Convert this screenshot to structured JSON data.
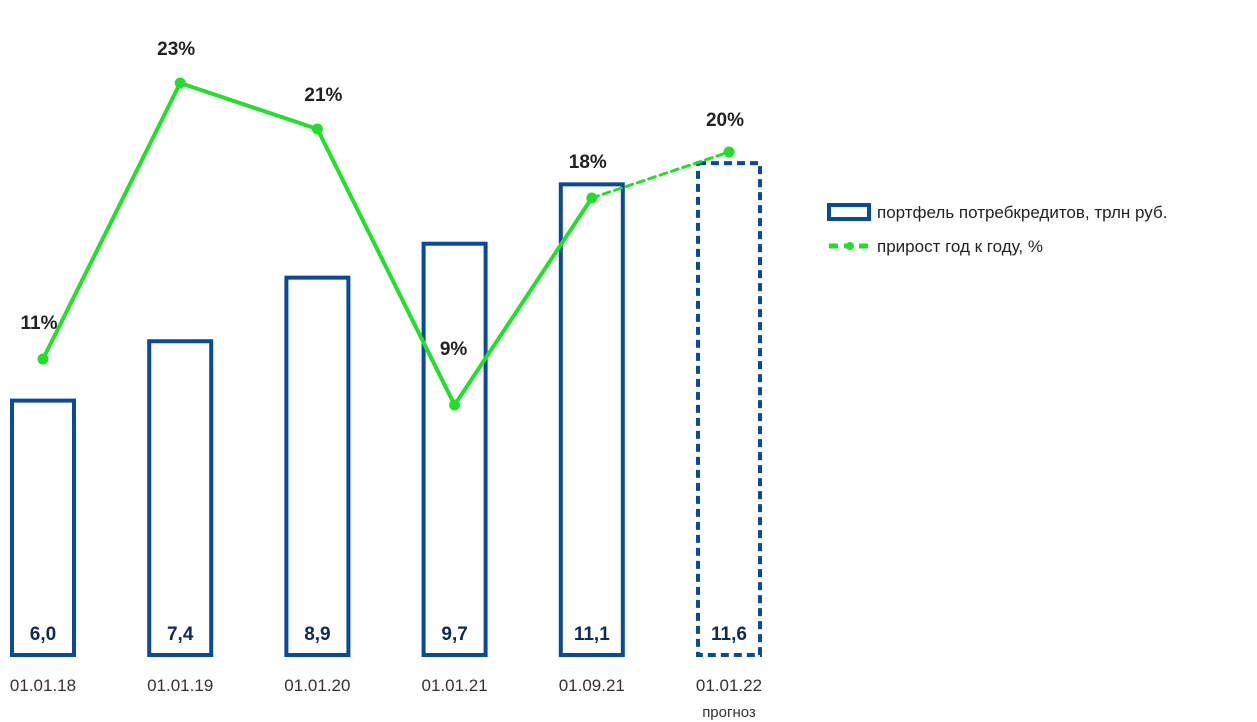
{
  "chart_data": {
    "type": "bar",
    "categories": [
      "01.01.18",
      "01.01.19",
      "01.01.20",
      "01.01.21",
      "01.09.21",
      "01.01.22"
    ],
    "category_notes": [
      "",
      "",
      "",
      "",
      "",
      "прогноз"
    ],
    "series": [
      {
        "name": "портфель потребкредитов, трлн руб.",
        "type": "bar",
        "values": [
          6.0,
          7.4,
          8.9,
          9.7,
          11.1,
          11.6
        ],
        "value_labels": [
          "6,0",
          "7,4",
          "8,9",
          "9,7",
          "11,1",
          "11,6"
        ],
        "forecast": [
          false,
          false,
          false,
          false,
          false,
          true
        ]
      },
      {
        "name": "прирост год к году, %",
        "type": "line",
        "values": [
          11,
          23,
          21,
          9,
          18,
          20
        ],
        "value_labels": [
          "11%",
          "23%",
          "21%",
          "9%",
          "18%",
          "20%"
        ],
        "forecast": [
          false,
          false,
          false,
          false,
          false,
          true
        ]
      }
    ],
    "legend_position": "right",
    "grid": false,
    "colors": {
      "bar": "#0a4a9a",
      "line": "#22e02a",
      "value_text": "#0d2a5c"
    }
  }
}
